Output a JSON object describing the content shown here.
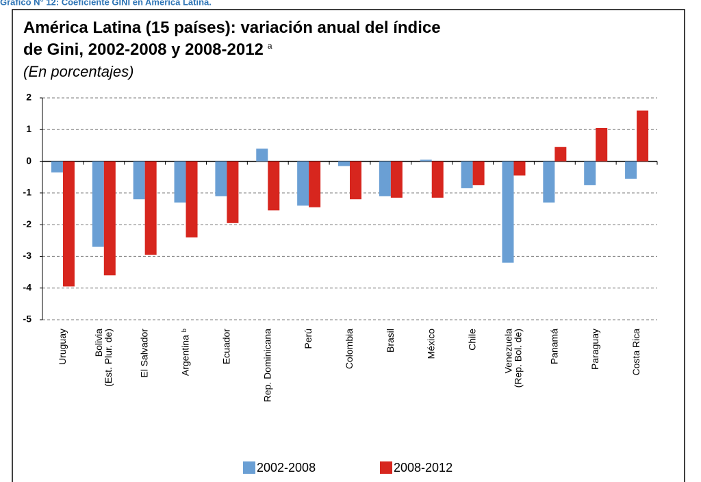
{
  "caption": "Gráfico N° 12: Coeficiente GINI en América Latina.",
  "chart_data": {
    "type": "bar",
    "title": "América Latina (15 países): variación anual del índice\nde Gini, 2002-2008 y 2008-2012",
    "title_note": "a",
    "subtitle": "(En porcentajes)",
    "categories": [
      "Uruguay",
      "Bolivia\n(Est. Plur. de)",
      "El Salvador",
      "Argentina ᵇ",
      "Ecuador",
      "Rep. Dominicana",
      "Perú",
      "Colombia",
      "Brasil",
      "México",
      "Chile",
      "Venezuela\n(Rep. Bol. de)",
      "Panamá",
      "Paraguay",
      "Costa Rica"
    ],
    "series": [
      {
        "name": "2002-2008",
        "color": "#6a9fd4",
        "values": [
          -0.35,
          -2.7,
          -1.2,
          -1.3,
          -1.1,
          0.4,
          -1.4,
          -0.15,
          -1.1,
          0.05,
          -0.85,
          -3.2,
          -1.3,
          -0.75,
          -0.55
        ]
      },
      {
        "name": "2008-2012",
        "color": "#d7261e",
        "values": [
          -3.95,
          -3.6,
          -2.95,
          -2.4,
          -1.95,
          -1.55,
          -1.45,
          -1.2,
          -1.15,
          -1.15,
          -0.75,
          -0.45,
          0.45,
          1.05,
          1.6
        ]
      }
    ],
    "ylim": [
      -5,
      2
    ],
    "yticks": [
      -5,
      -4,
      -3,
      -2,
      -1,
      0,
      1,
      2
    ],
    "grid": true
  }
}
